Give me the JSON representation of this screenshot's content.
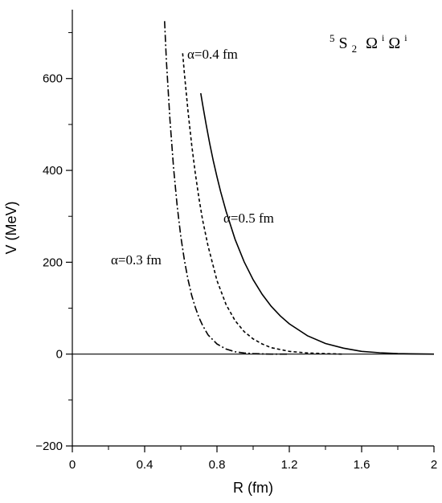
{
  "chart_data": {
    "type": "line",
    "title": "",
    "xlabel": "R (fm)",
    "ylabel": "V (MeV)",
    "xlim": [
      0,
      2
    ],
    "ylim": [
      -200,
      750
    ],
    "xticks_major": [
      0,
      0.4,
      0.8,
      1.2,
      1.6,
      2
    ],
    "xtick_labels": [
      "0",
      "0.4",
      "0.8",
      "1.2",
      "1.6",
      "2"
    ],
    "xticks_minor": [
      0.2,
      0.6,
      1.0,
      1.4,
      1.8
    ],
    "yticks_major": [
      -200,
      0,
      200,
      400,
      600
    ],
    "ytick_labels": [
      "−200",
      "0",
      "200",
      "400",
      "600"
    ],
    "yticks_minor": [
      -100,
      100,
      300,
      500,
      700
    ],
    "grid": false,
    "reference_line_y": 0,
    "corner_label": {
      "sup": "5",
      "main": "S",
      "sub": "2",
      "omega1": "Ω",
      "omega1_sup": "i",
      "omega2": "Ω",
      "omega2_sup": "i"
    },
    "series": [
      {
        "label": "α=0.3 fm",
        "style": "dash-dot",
        "x": [
          0.51,
          0.52,
          0.54,
          0.56,
          0.58,
          0.6,
          0.62,
          0.64,
          0.66,
          0.68,
          0.7,
          0.72,
          0.75,
          0.8,
          0.85,
          0.9,
          0.95,
          1.0,
          1.1,
          1.2
        ],
        "y": [
          725,
          640,
          510,
          405,
          322,
          256,
          204,
          162,
          128,
          102,
          80,
          63,
          42,
          22,
          11,
          5,
          2.5,
          1,
          0,
          0
        ]
      },
      {
        "label": "α=0.4 fm",
        "style": "dashed",
        "x": [
          0.61,
          0.62,
          0.64,
          0.66,
          0.68,
          0.7,
          0.72,
          0.75,
          0.8,
          0.85,
          0.9,
          0.95,
          1.0,
          1.05,
          1.1,
          1.2,
          1.3,
          1.4,
          1.5
        ],
        "y": [
          655,
          610,
          528,
          456,
          394,
          340,
          293,
          236,
          160,
          108,
          73,
          49,
          33,
          22,
          14,
          6,
          2.5,
          1,
          0
        ]
      },
      {
        "label": "α=0.5 fm",
        "style": "solid",
        "x": [
          0.71,
          0.72,
          0.74,
          0.76,
          0.78,
          0.8,
          0.82,
          0.85,
          0.9,
          0.95,
          1.0,
          1.05,
          1.1,
          1.15,
          1.2,
          1.3,
          1.4,
          1.5,
          1.6,
          1.7,
          1.8,
          2.0
        ],
        "y": [
          568,
          545,
          500,
          458,
          420,
          386,
          354,
          311,
          250,
          201,
          162,
          130,
          104,
          83,
          66,
          40,
          23,
          13,
          6,
          3,
          1,
          0
        ]
      }
    ]
  }
}
